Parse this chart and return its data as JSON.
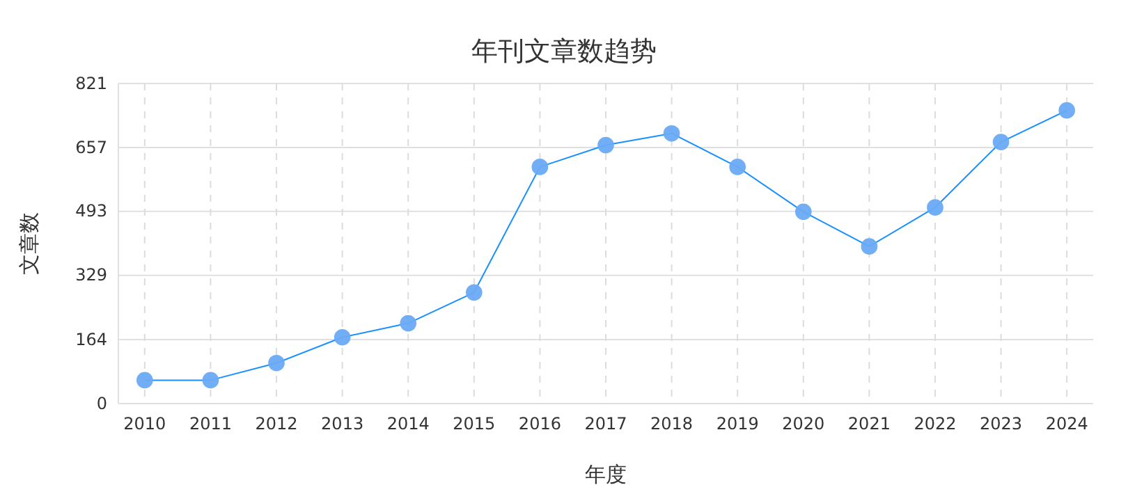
{
  "chart_data": {
    "type": "line",
    "title": "年刊文章数趋势",
    "xlabel": "年度",
    "ylabel": "文章数",
    "categories": [
      "2010",
      "2011",
      "2012",
      "2013",
      "2014",
      "2015",
      "2016",
      "2017",
      "2018",
      "2019",
      "2020",
      "2021",
      "2022",
      "2023",
      "2024"
    ],
    "series": [
      {
        "color": "#1890ff",
        "values": [
          60,
          60,
          104,
          170,
          206,
          285,
          607,
          663,
          693,
          607,
          492,
          403,
          503,
          671,
          752
        ]
      }
    ],
    "ylim": [
      0,
      821
    ],
    "yticks": [
      0,
      164,
      329,
      493,
      657,
      821
    ],
    "grid": true,
    "marker": "circle",
    "line_style": "solid"
  }
}
